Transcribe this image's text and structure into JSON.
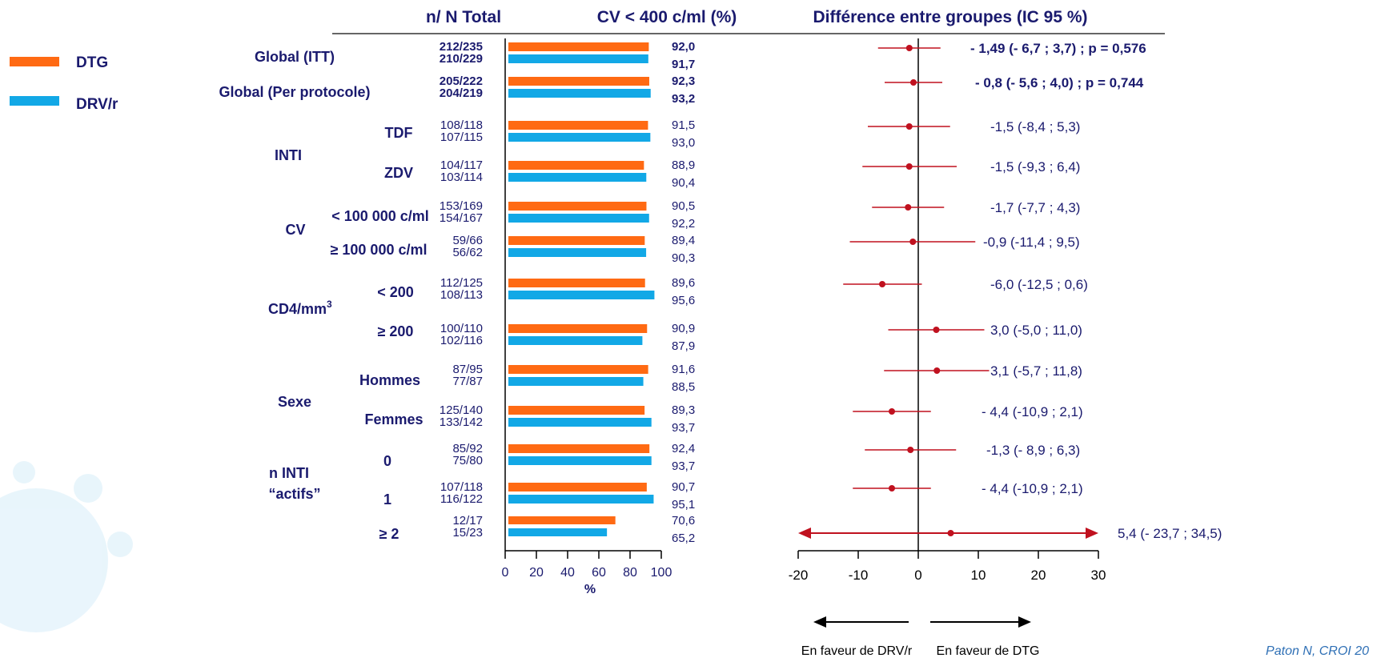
{
  "headers": {
    "counts": "n/ N Total",
    "pct": "CV < 400 c/ml (%)",
    "diff": "Différence entre groupes (IC 95 %)"
  },
  "legend": [
    {
      "label": "DTG",
      "color": "#ff6a13"
    },
    {
      "label": "DRV/r",
      "color": "#12a8e6"
    }
  ],
  "labels": {
    "global_itt": "Global (ITT)",
    "global_pp": "Global (Per protocole)",
    "inti": "INTI",
    "tdf": "TDF",
    "zdv": "ZDV",
    "cv": "CV",
    "cv_lt": "< 100 000 c/ml",
    "cv_ge": "≥ 100 000 c/ml",
    "cd4_main": "CD4/mm",
    "cd4_sup": "3",
    "cd4_lt": "< 200",
    "cd4_ge": "≥ 200",
    "sexe": "Sexe",
    "hommes": "Hommes",
    "femmes": "Femmes",
    "ninti_1": "n INTI",
    "ninti_2": "“actifs”",
    "n0": "0",
    "n1": "1",
    "n2": "≥ 2"
  },
  "chart_data": [
    {
      "type": "bar",
      "orientation": "horizontal",
      "title": "CV < 400 c/ml (%)",
      "xlabel": "%",
      "xlim": [
        0,
        100
      ],
      "xticks": [
        "0",
        "20",
        "40",
        "60",
        "80",
        "100"
      ],
      "series_names": [
        "DTG",
        "DRV/r"
      ],
      "rows": [
        {
          "counts": [
            "212/235",
            "210/229"
          ],
          "values": [
            92.0,
            91.7
          ],
          "value_labels": [
            "92,0",
            "91,7"
          ],
          "bold": true
        },
        {
          "counts": [
            "205/222",
            "204/219"
          ],
          "values": [
            92.3,
            93.2
          ],
          "value_labels": [
            "92,3",
            "93,2"
          ],
          "bold": true
        },
        {
          "counts": [
            "108/118",
            "107/115"
          ],
          "values": [
            91.5,
            93.0
          ],
          "value_labels": [
            "91,5",
            "93,0"
          ],
          "bold": false
        },
        {
          "counts": [
            "104/117",
            "103/114"
          ],
          "values": [
            88.9,
            90.4
          ],
          "value_labels": [
            "88,9",
            "90,4"
          ],
          "bold": false
        },
        {
          "counts": [
            "153/169",
            "154/167"
          ],
          "values": [
            90.5,
            92.2
          ],
          "value_labels": [
            "90,5",
            "92,2"
          ],
          "bold": false
        },
        {
          "counts": [
            "59/66",
            "56/62"
          ],
          "values": [
            89.4,
            90.3
          ],
          "value_labels": [
            "89,4",
            "90,3"
          ],
          "bold": false
        },
        {
          "counts": [
            "112/125",
            "108/113"
          ],
          "values": [
            89.6,
            95.6
          ],
          "value_labels": [
            "89,6",
            "95,6"
          ],
          "bold": false
        },
        {
          "counts": [
            "100/110",
            "102/116"
          ],
          "values": [
            90.9,
            87.9
          ],
          "value_labels": [
            "90,9",
            "87,9"
          ],
          "bold": false
        },
        {
          "counts": [
            "87/95",
            "77/87"
          ],
          "values": [
            91.6,
            88.5
          ],
          "value_labels": [
            "91,6",
            "88,5"
          ],
          "bold": false
        },
        {
          "counts": [
            "125/140",
            "133/142"
          ],
          "values": [
            89.3,
            93.7
          ],
          "value_labels": [
            "89,3",
            "93,7"
          ],
          "bold": false
        },
        {
          "counts": [
            "85/92",
            "75/80"
          ],
          "values": [
            92.4,
            93.7
          ],
          "value_labels": [
            "92,4",
            "93,7"
          ],
          "bold": false
        },
        {
          "counts": [
            "107/118",
            "116/122"
          ],
          "values": [
            90.7,
            95.1
          ],
          "value_labels": [
            "90,7",
            "95,1"
          ],
          "bold": false
        },
        {
          "counts": [
            "12/17",
            "15/23"
          ],
          "values": [
            70.6,
            65.2
          ],
          "value_labels": [
            "70,6",
            "65,2"
          ],
          "bold": false
        }
      ]
    },
    {
      "type": "scatter",
      "subtype": "forest",
      "title": "Différence entre groupes (IC 95 %)",
      "xlim": [
        -20,
        30
      ],
      "xticks": [
        "-20",
        "-10",
        "0",
        "10",
        "20",
        "30"
      ],
      "arrow_left_label": "En faveur de DRV/r",
      "arrow_right_label": "En faveur de DTG",
      "rows": [
        {
          "est": -1.49,
          "lo": -6.7,
          "hi": 3.7,
          "label": "- 1,49 (- 6,7 ; 3,7) ; p = 0,576",
          "bold": true
        },
        {
          "est": -0.8,
          "lo": -5.6,
          "hi": 4.0,
          "label": "- 0,8 (- 5,6 ; 4,0) ; p = 0,744",
          "bold": true
        },
        {
          "est": -1.5,
          "lo": -8.4,
          "hi": 5.3,
          "label": "-1,5 (-8,4 ; 5,3)",
          "bold": false
        },
        {
          "est": -1.5,
          "lo": -9.3,
          "hi": 6.4,
          "label": "-1,5 (-9,3 ; 6,4)",
          "bold": false
        },
        {
          "est": -1.7,
          "lo": -7.7,
          "hi": 4.3,
          "label": "-1,7 (-7,7 ; 4,3)",
          "bold": false
        },
        {
          "est": -0.9,
          "lo": -11.4,
          "hi": 9.5,
          "label": "-0,9 (-11,4 ; 9,5)",
          "bold": false
        },
        {
          "est": -6.0,
          "lo": -12.5,
          "hi": 0.6,
          "label": "-6,0 (-12,5 ; 0,6)",
          "bold": false
        },
        {
          "est": 3.0,
          "lo": -5.0,
          "hi": 11.0,
          "label": "3,0 (-5,0 ; 11,0)",
          "bold": false
        },
        {
          "est": 3.1,
          "lo": -5.7,
          "hi": 11.8,
          "label": "3,1 (-5,7 ; 11,8)",
          "bold": false
        },
        {
          "est": -4.4,
          "lo": -10.9,
          "hi": 2.1,
          "label": "- 4,4 (-10,9 ; 2,1)",
          "bold": false
        },
        {
          "est": -1.3,
          "lo": -8.9,
          "hi": 6.3,
          "label": "-1,3 (- 8,9 ; 6,3)",
          "bold": false
        },
        {
          "est": -4.4,
          "lo": -10.9,
          "hi": 2.1,
          "label": "- 4,4 (-10,9 ; 2,1)",
          "bold": false
        },
        {
          "est": 5.4,
          "lo": -23.7,
          "hi": 34.5,
          "label": "5,4 (- 23,7 ; 34,5)",
          "bold": false,
          "truncated": true
        }
      ]
    }
  ],
  "citation": "Paton N, CROI 20",
  "colors": {
    "dtg": "#ff6a13",
    "drv": "#12a8e6",
    "forest": "#c0111f",
    "text": "#1a1a6e"
  }
}
